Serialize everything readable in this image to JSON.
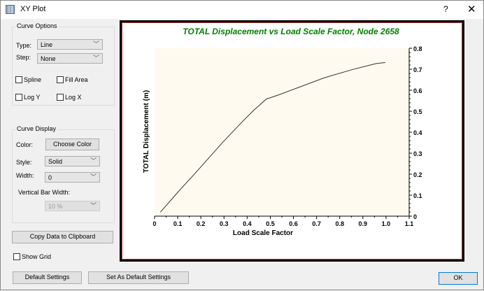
{
  "window": {
    "title": "XY Plot",
    "help_label": "?",
    "close_label": "✕",
    "icon": "xy-plot-icon"
  },
  "curve_options": {
    "title": "Curve Options",
    "type_label": "Type:",
    "type_value": "Line",
    "step_label": "Step:",
    "step_value": "None",
    "spline_label": "Spline",
    "spline_checked": false,
    "fill_area_label": "Fill Area",
    "fill_area_checked": false,
    "log_y_label": "Log Y",
    "log_y_checked": false,
    "log_x_label": "Log X",
    "log_x_checked": false
  },
  "curve_display": {
    "title": "Curve Display",
    "color_label": "Color:",
    "choose_color_label": "Choose Color",
    "style_label": "Style:",
    "style_value": "Solid",
    "width_label": "Width:",
    "width_value": "0",
    "vbar_label": "Vertical Bar Width:",
    "vbar_value": "10 %"
  },
  "copy_label": "Copy Data to Clipboard",
  "show_grid_label": "Show Grid",
  "show_grid_checked": false,
  "footer": {
    "default_settings": "Default Settings",
    "set_default": "Set As Default Settings",
    "ok": "OK"
  },
  "chart_data": {
    "type": "line",
    "title": "TOTAL Displacement  vs Load Scale Factor, Node 2658",
    "xlabel": "Load Scale Factor",
    "ylabel": "TOTAL Displacement (m)",
    "xlim": [
      0,
      1.1
    ],
    "ylim": [
      0,
      0.8
    ],
    "xticks": [
      "0",
      "0.1",
      "0.2",
      "0.3",
      "0.4",
      "0.5",
      "0.6",
      "0.7",
      "0.8",
      "0.9",
      "1.0",
      "1.1"
    ],
    "yticks": [
      "0",
      "0.1",
      "0.2",
      "0.3",
      "0.4",
      "0.5",
      "0.6",
      "0.7",
      "0.8"
    ],
    "y_axis_side": "right",
    "grid": false,
    "colors": {
      "title": "#008000",
      "plot_bg": "#fffaf0",
      "line": "#333333"
    },
    "x": [
      0.025,
      0.106,
      0.171,
      0.247,
      0.292,
      0.378,
      0.428,
      0.483,
      0.534,
      0.614,
      0.735,
      0.856,
      0.957,
      0.997
    ],
    "y": [
      0.019,
      0.121,
      0.199,
      0.293,
      0.349,
      0.449,
      0.504,
      0.558,
      0.577,
      0.61,
      0.66,
      0.699,
      0.727,
      0.732
    ]
  }
}
